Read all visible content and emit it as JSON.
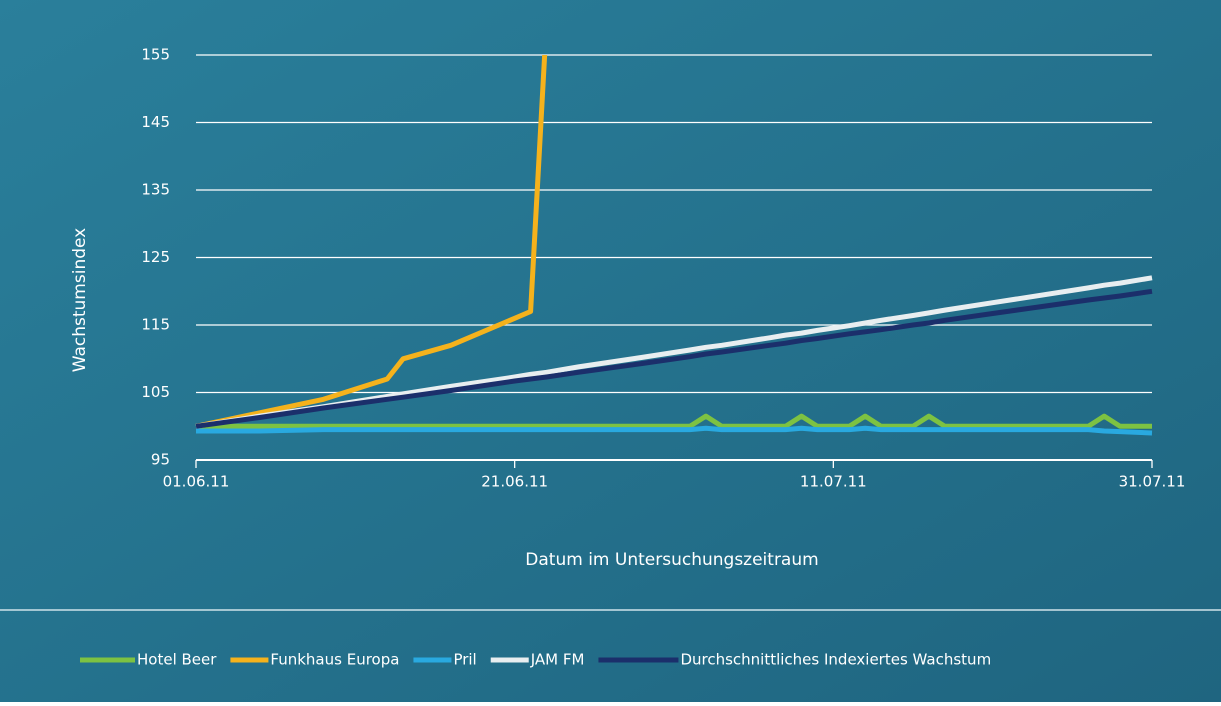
{
  "chart_data": {
    "type": "line",
    "y_label": "Wachstumsindex",
    "x_label": "Datum im Untersuchungszeitraum",
    "x": [
      "2011-06-01",
      "2011-06-05",
      "2011-06-09",
      "2011-06-13",
      "2011-06-14",
      "2011-06-17",
      "2011-06-21",
      "2011-06-22",
      "2011-06-23",
      "2011-06-25",
      "2011-06-29",
      "2011-07-02",
      "2011-07-03",
      "2011-07-04",
      "2011-07-07",
      "2011-07-08",
      "2011-07-09",
      "2011-07-10",
      "2011-07-12",
      "2011-07-13",
      "2011-07-14",
      "2011-07-16",
      "2011-07-17",
      "2011-07-18",
      "2011-07-21",
      "2011-07-27",
      "2011-07-28",
      "2011-07-29",
      "2011-07-31"
    ],
    "xlim": [
      "2011-06-01",
      "2011-07-31"
    ],
    "xticks": [
      {
        "value": "2011-06-01",
        "label": "01.06.11"
      },
      {
        "value": "2011-06-21",
        "label": "21.06.11"
      },
      {
        "value": "2011-07-11",
        "label": "11.07.11"
      },
      {
        "value": "2011-07-31",
        "label": "31.07.11"
      }
    ],
    "ylim": [
      95,
      155
    ],
    "yticks": [
      95,
      105,
      115,
      125,
      135,
      145,
      155
    ],
    "grid": true,
    "legend": "bottom",
    "series": [
      {
        "name": "Hotel Beer",
        "color": "#7dc242",
        "values": [
          100,
          100,
          100,
          100,
          100,
          100,
          100,
          100,
          100,
          100,
          100,
          100,
          101.5,
          100,
          100,
          100,
          101.5,
          100,
          100,
          101.5,
          100,
          100,
          101.5,
          100,
          100,
          100,
          101.5,
          100,
          100
        ]
      },
      {
        "name": "Funkhaus Europa",
        "color": "#f5b21c",
        "values": [
          100,
          102,
          104,
          107,
          110,
          112,
          116,
          117,
          160,
          null,
          null,
          null,
          null,
          null,
          null,
          null,
          null,
          null,
          null,
          null,
          null,
          null,
          null,
          null,
          null,
          null,
          null,
          null,
          null
        ]
      },
      {
        "name": "Pril",
        "color": "#29a9e0",
        "values": [
          99.3,
          99.3,
          99.5,
          99.5,
          99.5,
          99.5,
          99.5,
          99.5,
          99.5,
          99.5,
          99.5,
          99.5,
          99.7,
          99.5,
          99.5,
          99.5,
          99.7,
          99.5,
          99.5,
          99.7,
          99.5,
          99.5,
          99.5,
          99.5,
          99.5,
          99.5,
          99.3,
          99.2,
          99
        ]
      },
      {
        "name": "JAM FM",
        "color": "#e8eef0",
        "values": [
          100,
          101.5,
          102.9,
          104.4,
          104.8,
          105.9,
          107.3,
          107.7,
          108,
          108.8,
          110.2,
          111.3,
          111.7,
          112,
          113.1,
          113.5,
          113.8,
          114.2,
          114.9,
          115.3,
          115.7,
          116.4,
          116.8,
          117.2,
          118.3,
          120.5,
          120.9,
          121.2,
          122
        ]
      },
      {
        "name": "Durchschnittliches Indexiertes Wachstum",
        "color": "#1b2f6b",
        "values": [
          100,
          101.3,
          102.7,
          104,
          104.3,
          105.3,
          106.7,
          107,
          107.3,
          108,
          109.3,
          110.3,
          110.7,
          111,
          112,
          112.3,
          112.7,
          113,
          113.7,
          114,
          114.3,
          115,
          115.3,
          115.7,
          116.7,
          118.7,
          119,
          119.3,
          120
        ]
      }
    ]
  }
}
